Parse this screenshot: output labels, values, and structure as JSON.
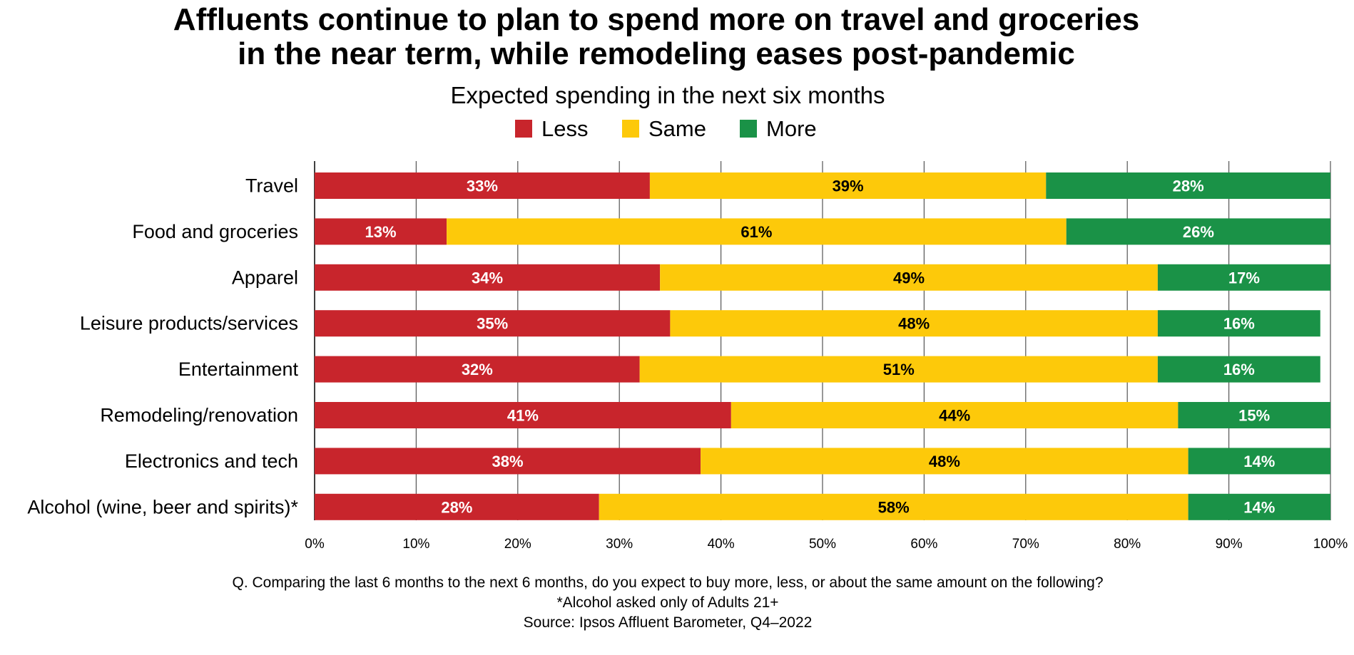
{
  "chart_data": {
    "type": "bar",
    "orientation": "horizontal",
    "stacked": true,
    "title": "Affluents continue to plan to spend more on travel and groceries in the near term, while remodeling eases post-pandemic",
    "title_lines": [
      "Affluents continue to plan to spend more on travel and groceries",
      "in the near term, while remodeling eases post-pandemic"
    ],
    "subtitle": "Expected spending in the next six months",
    "categories": [
      "Travel",
      "Food and groceries",
      "Apparel",
      "Leisure products/services",
      "Entertainment",
      "Remodeling/renovation",
      "Electronics and tech",
      "Alcohol (wine, beer and spirits)*"
    ],
    "series": [
      {
        "name": "Less",
        "color": "#C8252C",
        "label_color": "#FFFFFF",
        "values": [
          33,
          13,
          34,
          35,
          32,
          41,
          38,
          28
        ]
      },
      {
        "name": "Same",
        "color": "#FDC90A",
        "label_color": "#000000",
        "values": [
          39,
          61,
          49,
          48,
          51,
          44,
          48,
          58
        ]
      },
      {
        "name": "More",
        "color": "#1A9247",
        "label_color": "#FFFFFF",
        "values": [
          28,
          26,
          17,
          16,
          16,
          15,
          14,
          14
        ]
      }
    ],
    "xlim": [
      0,
      100
    ],
    "xticks": [
      "0%",
      "10%",
      "20%",
      "30%",
      "40%",
      "50%",
      "60%",
      "70%",
      "80%",
      "90%",
      "100%"
    ],
    "grid": true,
    "legend_placement": "top-center",
    "xlabel": "",
    "ylabel": ""
  },
  "footer": [
    "Q. Comparing the last 6 months to the next 6 months, do you expect to buy more, less, or about the same amount on the following?",
    "*Alcohol asked only of Adults 21+",
    "Source: Ipsos Affluent Barometer, Q4–2022"
  ]
}
